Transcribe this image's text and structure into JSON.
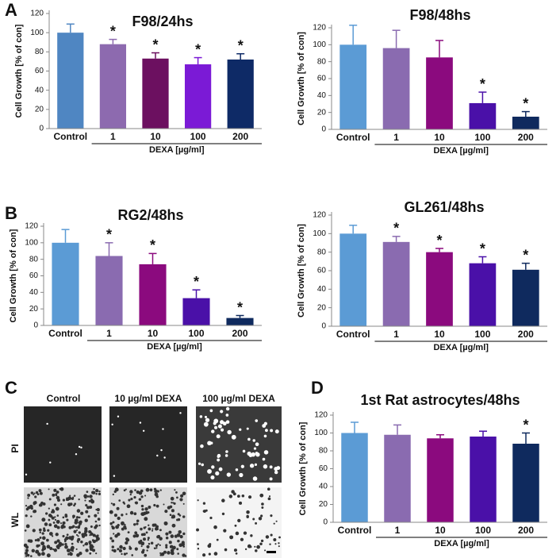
{
  "panel_labels": [
    "A",
    "B",
    "C",
    "D"
  ],
  "images": {
    "columns": [
      "Control",
      "10 µg/ml DEXA",
      "100 µg/ml DEXA"
    ],
    "rows": [
      "PI",
      "WL"
    ]
  },
  "chart_data": [
    {
      "type": "bar",
      "title": "F98/24hs",
      "xlabel": "DEXA [µg/ml]",
      "ylabel": "Cell Growth [% of con]",
      "categories": [
        "Control",
        "1",
        "10",
        "100",
        "200"
      ],
      "values": [
        100,
        88,
        73,
        67,
        72
      ],
      "errors": [
        9,
        5,
        6,
        7,
        6
      ],
      "significance": [
        null,
        "*",
        "*",
        "*",
        "*"
      ],
      "colors": [
        "#4f86c2",
        "#8d6aaf",
        "#6c1060",
        "#7b1ad6",
        "#0e2a66"
      ],
      "ylim": [
        0,
        120
      ],
      "yticks": [
        0,
        20,
        40,
        60,
        80,
        100,
        120
      ]
    },
    {
      "type": "bar",
      "title": "F98/48hs",
      "xlabel": "DEXA [µg/ml]",
      "ylabel": "Cell Growth [% of con]",
      "categories": [
        "Control",
        "1",
        "10",
        "100",
        "200"
      ],
      "values": [
        100,
        96,
        85,
        31,
        15
      ],
      "errors": [
        23,
        21,
        20,
        13,
        6
      ],
      "significance": [
        null,
        null,
        null,
        "*",
        "*"
      ],
      "colors": [
        "#5b9bd5",
        "#8a6bb0",
        "#8b0a7e",
        "#4a10a8",
        "#0f2a5e"
      ],
      "ylim": [
        0,
        120
      ],
      "yticks": [
        0,
        20,
        40,
        60,
        80,
        100,
        120
      ]
    },
    {
      "type": "bar",
      "title": "RG2/48hs",
      "xlabel": "DEXA [µg/ml]",
      "ylabel": "Cell Growth [% of con]",
      "categories": [
        "Control",
        "1",
        "10",
        "100",
        "200"
      ],
      "values": [
        100,
        84,
        74,
        33,
        9
      ],
      "errors": [
        16,
        16,
        13,
        10,
        3
      ],
      "significance": [
        null,
        "*",
        "*",
        "*",
        "*"
      ],
      "colors": [
        "#5b9bd5",
        "#8a6bb0",
        "#8b0a7e",
        "#4a10a8",
        "#0f2a5e"
      ],
      "ylim": [
        0,
        120
      ],
      "yticks": [
        0,
        20,
        40,
        60,
        80,
        100,
        120
      ]
    },
    {
      "type": "bar",
      "title": "GL261/48hs",
      "xlabel": "DEXA [µg/ml]",
      "ylabel": "Cell Growth [% of con]",
      "categories": [
        "Control",
        "1",
        "10",
        "100",
        "200"
      ],
      "values": [
        100,
        91,
        80,
        68,
        61
      ],
      "errors": [
        9,
        6,
        4,
        7,
        7
      ],
      "significance": [
        null,
        "*",
        "*",
        "*",
        "*"
      ],
      "colors": [
        "#5b9bd5",
        "#8a6bb0",
        "#8b0a7e",
        "#4a10a8",
        "#0f2a5e"
      ],
      "ylim": [
        0,
        120
      ],
      "yticks": [
        0,
        20,
        40,
        60,
        80,
        100,
        120
      ]
    },
    {
      "type": "bar",
      "title": "1st Rat astrocytes/48hs",
      "xlabel": "DEXA [µg/ml]",
      "ylabel": "Cell Growth [% of con]",
      "categories": [
        "Control",
        "1",
        "10",
        "100",
        "200"
      ],
      "values": [
        100,
        98,
        94,
        96,
        88
      ],
      "errors": [
        12,
        11,
        4,
        6,
        12
      ],
      "significance": [
        null,
        null,
        null,
        null,
        "*"
      ],
      "colors": [
        "#5b9bd5",
        "#8a6bb0",
        "#8b0a7e",
        "#4a10a8",
        "#0f2a5e"
      ],
      "ylim": [
        0,
        120
      ],
      "yticks": [
        0,
        20,
        40,
        60,
        80,
        100,
        120
      ]
    }
  ]
}
